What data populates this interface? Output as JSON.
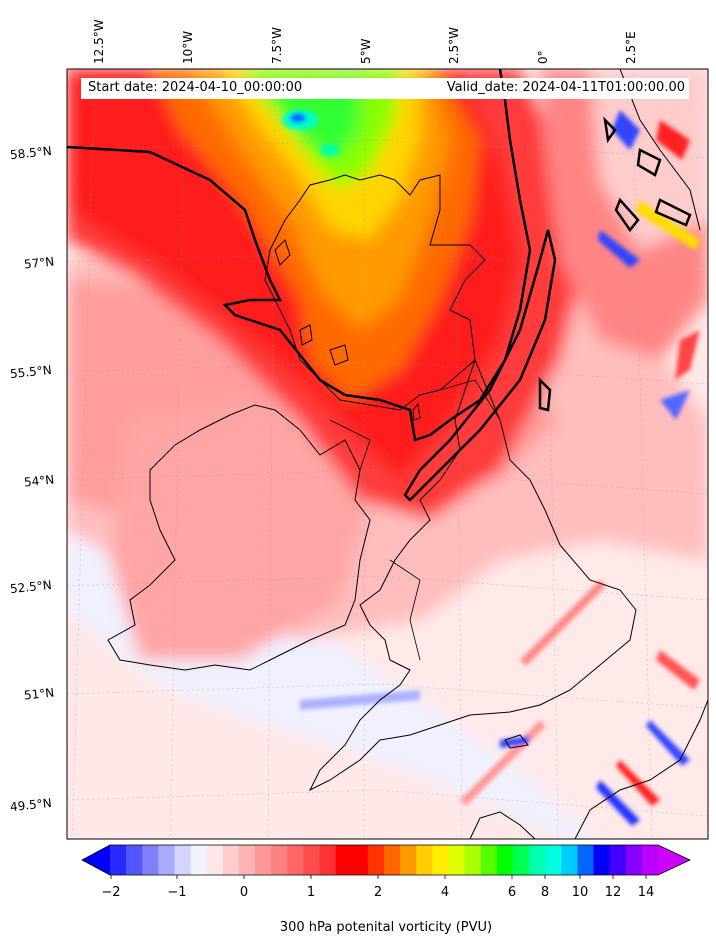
{
  "map": {
    "title": "",
    "start_date": "Start date: 2024-04-10_00:00:00",
    "valid_date": "Valid_date: 2024-04-11T01:00:00.00",
    "longitude_labels": [
      "12.5°W",
      "10°W",
      "7.5°W",
      "5°W",
      "2.5°W",
      "0°",
      "2.5°E"
    ],
    "latitude_labels": [
      "58.5°N",
      "57°N",
      "55.5°N",
      "54°N",
      "52.5°N",
      "51°N",
      "49.5°N"
    ],
    "region": "British Isles",
    "variable": "300 hPa potential vorticity",
    "contour_level_pvu": 2
  },
  "colorbar": {
    "title": "300 hPa potenital vorticity (PVU)",
    "tick_labels": [
      "−2",
      "−1",
      "0",
      "1",
      "2",
      "4",
      "6",
      "8",
      "10",
      "12",
      "14"
    ],
    "extend": "both",
    "colors": [
      "#0000ff",
      "#2a2aff",
      "#5555ff",
      "#7f7fff",
      "#aaaaff",
      "#d4d4ff",
      "#f2f2ff",
      "#ffe6e6",
      "#ffcccc",
      "#ffb3b3",
      "#ff9999",
      "#ff8080",
      "#ff6666",
      "#ff4d4d",
      "#ff3333",
      "#ff0000",
      "#ff0000",
      "#ff3300",
      "#ff6600",
      "#ff9900",
      "#ffcc00",
      "#ffee00",
      "#ddff00",
      "#aaff00",
      "#55ff00",
      "#00ff00",
      "#00ff55",
      "#00ffaa",
      "#00ffdd",
      "#00ccff",
      "#0066ff",
      "#0000ff",
      "#4400ff",
      "#8800ff",
      "#bb00ff",
      "#cc00ff"
    ]
  }
}
